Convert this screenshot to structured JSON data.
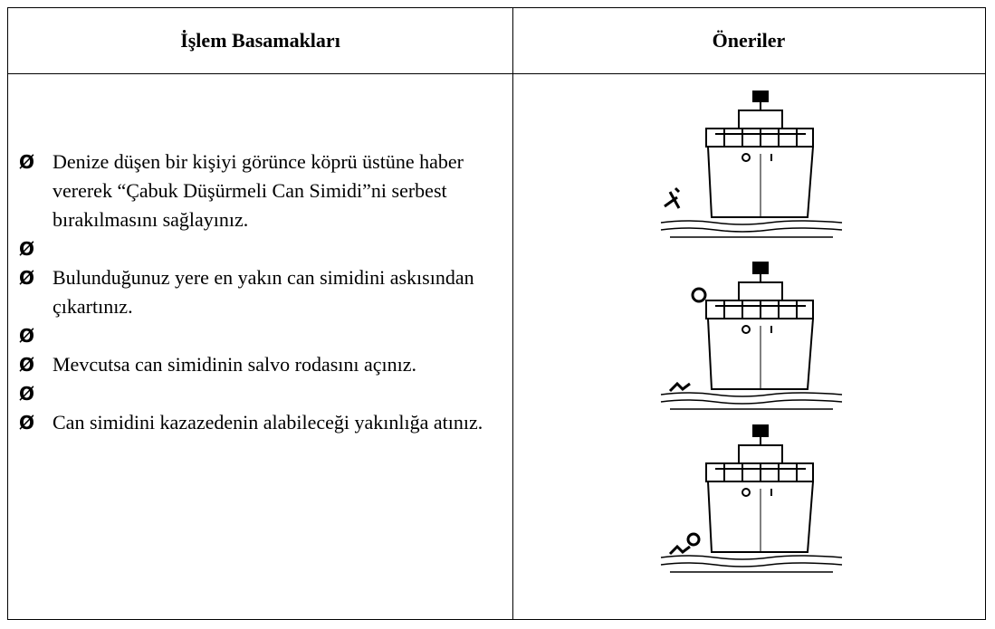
{
  "table": {
    "headers": [
      "İşlem Basamakları",
      "Öneriler"
    ],
    "bullet": "Ø",
    "steps": [
      "Denize düşen bir kişiyi görünce köprü üstüne haber vererek “Çabuk Düşürmeli Can Simidi”ni serbest bırakılmasını sağlayınız.",
      "Bulunduğunuz yere en yakın can simidini askısından çıkartınız.",
      "Mevcutsa can simidinin salvo rodasını açınız.",
      "Can simidini kazazedenin alabileceği yakınlığa atınız."
    ]
  }
}
